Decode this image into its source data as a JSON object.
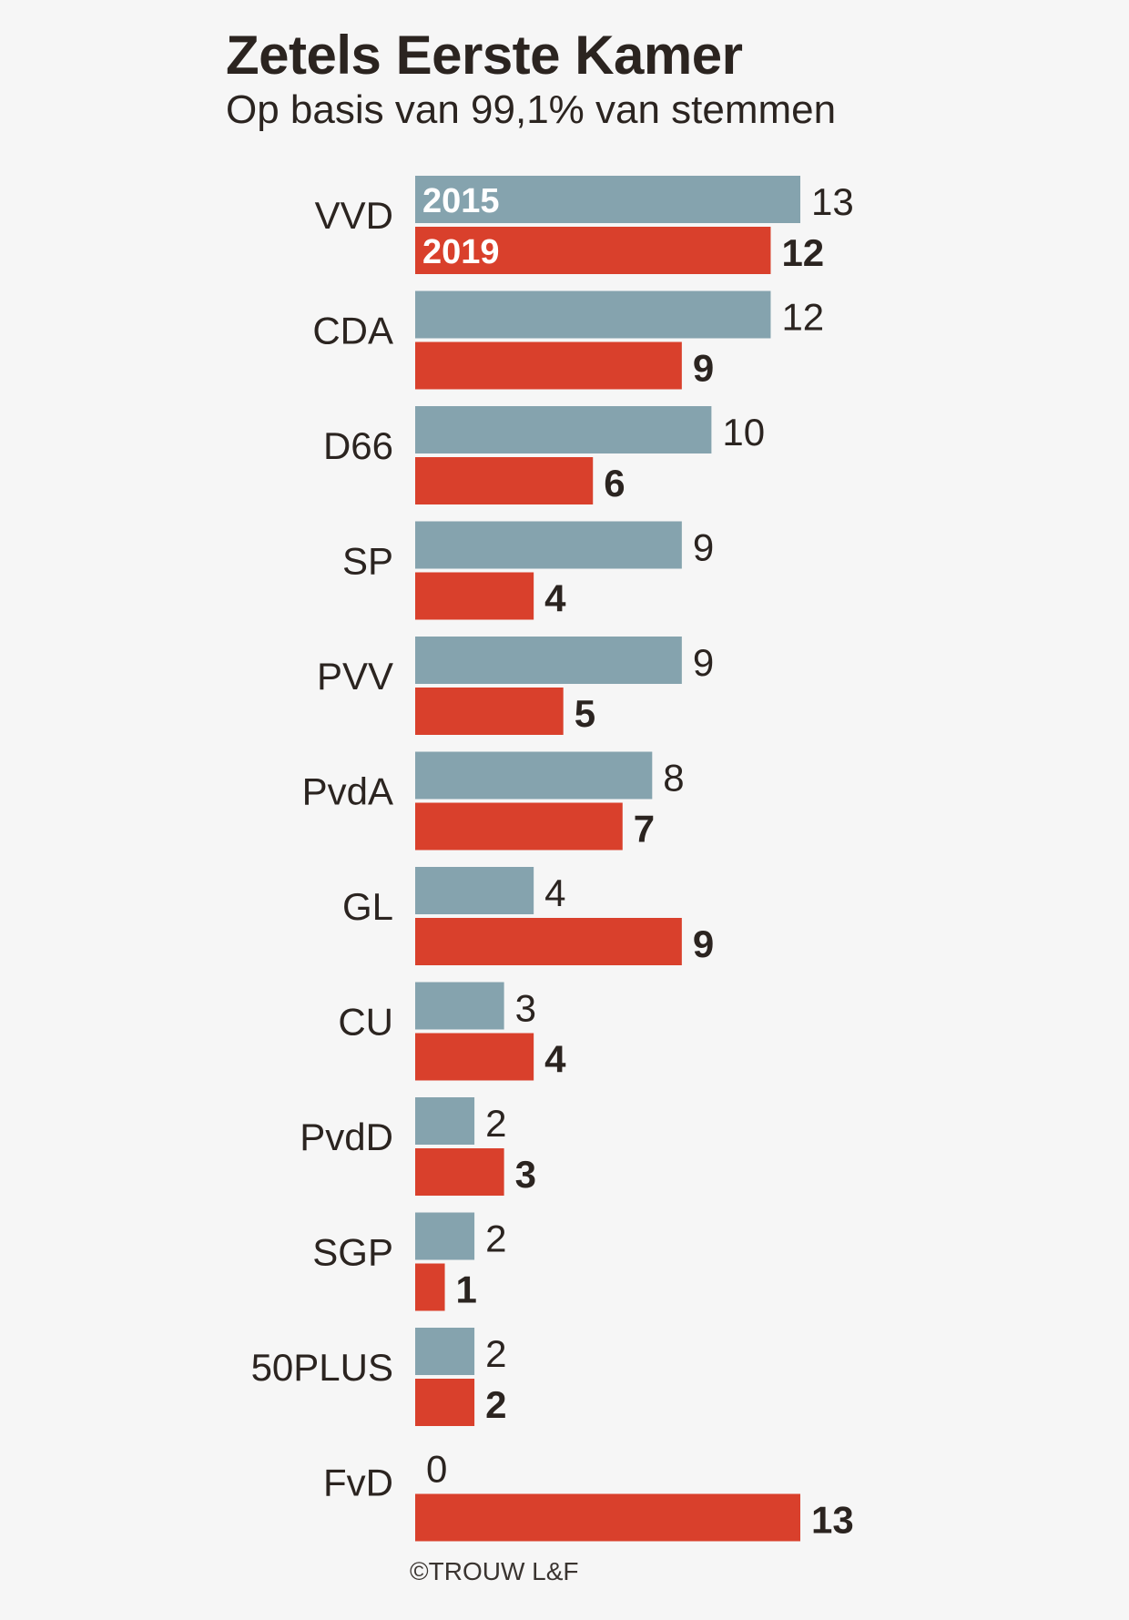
{
  "title": "Zetels Eerste Kamer",
  "subtitle": "Op basis van 99,1% van stemmen",
  "credit": "©TROUW L&F",
  "chart_data": {
    "type": "bar",
    "orientation": "horizontal",
    "categories": [
      "VVD",
      "CDA",
      "D66",
      "SP",
      "PVV",
      "PvdA",
      "GL",
      "CU",
      "PvdD",
      "SGP",
      "50PLUS",
      "FvD"
    ],
    "series": [
      {
        "name": "2015",
        "color": "#85a3ae",
        "values": [
          13,
          12,
          10,
          9,
          9,
          8,
          4,
          3,
          2,
          2,
          2,
          0
        ]
      },
      {
        "name": "2019",
        "color": "#d9402c",
        "values": [
          12,
          9,
          6,
          4,
          5,
          7,
          9,
          4,
          3,
          1,
          2,
          13
        ]
      }
    ],
    "xlim": [
      0,
      13
    ],
    "grid": false,
    "legend": "inside-first-bars"
  }
}
